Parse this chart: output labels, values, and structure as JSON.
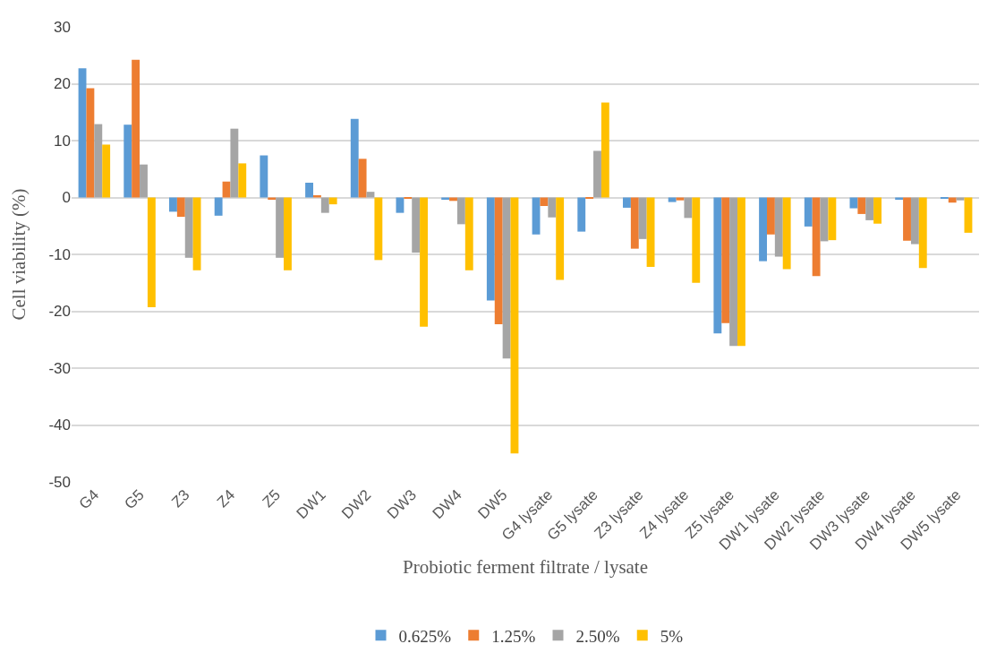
{
  "chart_data": {
    "type": "bar",
    "xlabel": "Probiotic ferment filtrate / lysate",
    "ylabel": "Cell viability (%)",
    "categories": [
      "G4",
      "G5",
      "Z3",
      "Z4",
      "Z5",
      "DW1",
      "DW2",
      "DW3",
      "DW4",
      "DW5",
      "G4 lysate",
      "G5 lysate",
      "Z3 lysate",
      "Z4 lysate",
      "Z5 lysate",
      "DW1 lysate",
      "DW2 lysate",
      "DW3 lysate",
      "DW4 lysate",
      "DW5 lysate"
    ],
    "series": [
      {
        "name": "0.625%",
        "color": "#5b9bd5",
        "values": [
          22.7,
          12.8,
          -2.5,
          -3.2,
          7.4,
          2.6,
          13.8,
          -2.7,
          -0.4,
          -18.1,
          -6.5,
          -6.0,
          -1.8,
          -0.8,
          -23.9,
          -11.2,
          -5.1,
          -1.9,
          -0.4,
          -0.2
        ]
      },
      {
        "name": "1.25%",
        "color": "#ed7d31",
        "values": [
          19.2,
          24.2,
          -3.4,
          2.8,
          -0.4,
          0.4,
          6.8,
          -0.2,
          -0.6,
          -22.3,
          -1.5,
          -0.2,
          -9.0,
          -0.5,
          -22.1,
          -6.5,
          -13.8,
          -2.9,
          -7.6,
          -0.9
        ]
      },
      {
        "name": "2.50%",
        "color": "#a5a5a5",
        "values": [
          12.9,
          5.8,
          -10.6,
          12.1,
          -10.6,
          -2.7,
          1.0,
          -9.7,
          -4.7,
          -28.3,
          -3.5,
          8.2,
          -7.3,
          -3.6,
          -26.1,
          -10.4,
          -7.7,
          -4.0,
          -8.2,
          -0.5
        ]
      },
      {
        "name": "5%",
        "color": "#ffc000",
        "values": [
          9.3,
          -19.3,
          -12.8,
          6.0,
          -12.8,
          -1.2,
          -11.0,
          -22.7,
          -12.8,
          -45.0,
          -14.5,
          16.7,
          -12.2,
          -15.0,
          -26.1,
          -12.6,
          -7.5,
          -4.6,
          -12.4,
          -6.2
        ]
      }
    ],
    "ylim": [
      -50,
      30
    ],
    "yticks": [
      -50,
      -40,
      -30,
      -20,
      -10,
      0,
      10,
      20,
      30
    ],
    "grid": "y",
    "legend": "bottom"
  }
}
